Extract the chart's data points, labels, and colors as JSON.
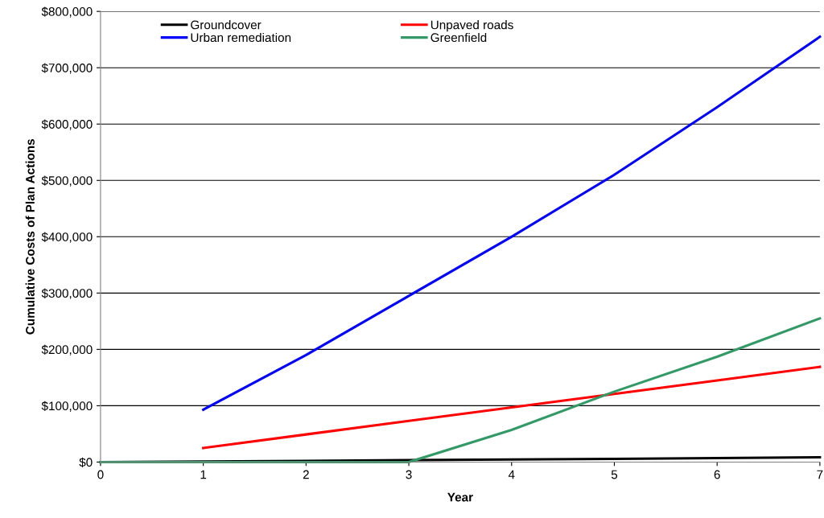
{
  "chart_data": {
    "type": "line",
    "xlabel": "Year",
    "ylabel": "Cumulative Costs of Plan Actions",
    "x": [
      0,
      1,
      2,
      3,
      4,
      5,
      6,
      7
    ],
    "series": [
      {
        "name": "Groundcover",
        "color": "#000000",
        "values": [
          0,
          1000,
          2000,
          3500,
          4500,
          5500,
          7000,
          8500
        ]
      },
      {
        "name": "Urban remediation",
        "color": "#0000ff",
        "values": [
          null,
          93000,
          190000,
          295000,
          400000,
          510000,
          630000,
          755000
        ]
      },
      {
        "name": "Unpaved roads",
        "color": "#ff0000",
        "values": [
          null,
          25000,
          49000,
          73000,
          97000,
          121000,
          145000,
          169000
        ]
      },
      {
        "name": "Greenfield",
        "color": "#339966",
        "values": [
          0,
          0,
          0,
          0,
          57000,
          125000,
          187000,
          255000
        ]
      }
    ],
    "xlim": [
      0,
      7
    ],
    "xticks": [
      0,
      1,
      2,
      3,
      4,
      5,
      6,
      7
    ],
    "ylim": [
      0,
      800000
    ],
    "yticks": [
      {
        "value": 0,
        "label": "$0"
      },
      {
        "value": 100000,
        "label": "$100,000"
      },
      {
        "value": 200000,
        "label": "$200,000"
      },
      {
        "value": 300000,
        "label": "$300,000"
      },
      {
        "value": 400000,
        "label": "$400,000"
      },
      {
        "value": 500000,
        "label": "$500,000"
      },
      {
        "value": 600000,
        "label": "$600,000"
      },
      {
        "value": 700000,
        "label": "$700,000"
      },
      {
        "value": 800000,
        "label": "$800,000"
      }
    ],
    "grid": "y",
    "legend": "top left",
    "marker": "none",
    "line_style": "solid"
  }
}
